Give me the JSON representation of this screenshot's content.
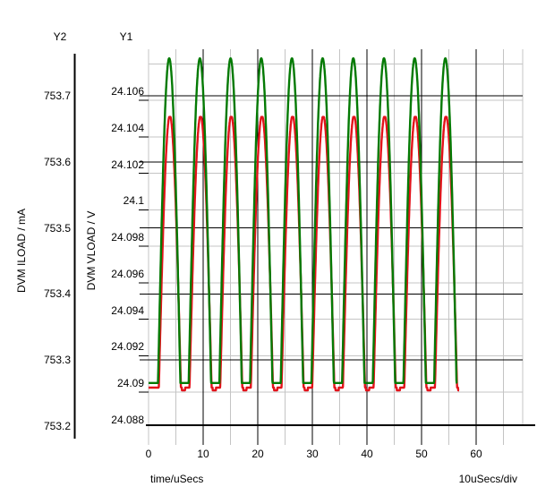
{
  "window": {
    "title": "waveform-plot"
  },
  "colors": {
    "background": "#ffffff",
    "text": "#000000",
    "grid_major": "#000000",
    "grid_minor": "#c4c4c4",
    "axis": "#000000",
    "vload_green": "#047a04",
    "iload_red": "#e3121a"
  },
  "y2_axis": {
    "title": "Y2",
    "unit_label": "DVM ILOAD / mA",
    "tick_labels": [
      "753.7",
      "753.6",
      "753.5",
      "753.4",
      "753.3",
      "753.2"
    ],
    "tick_values": [
      753.7,
      753.6,
      753.5,
      753.4,
      753.3,
      753.2
    ],
    "range": [
      753.201,
      753.77
    ]
  },
  "y1_axis": {
    "title": "Y1",
    "unit_label": "DVM VLOAD / V",
    "tick_labels": [
      "24.106",
      "24.104",
      "24.102",
      "24.1",
      "24.098",
      "24.096",
      "24.094",
      "24.092",
      "24.09",
      "24.088"
    ],
    "tick_values": [
      24.106,
      24.104,
      24.102,
      24.1,
      24.098,
      24.096,
      24.094,
      24.092,
      24.09,
      24.088
    ],
    "grid_values": [
      24.108,
      24.106,
      24.104,
      24.102,
      24.1,
      24.098,
      24.096,
      24.094,
      24.092,
      24.09,
      24.088
    ],
    "range": [
      24.0882,
      24.1088
    ]
  },
  "x_axis": {
    "caption": "time/uSecs",
    "div_label": "10uSecs/div",
    "tick_labels": [
      "0",
      "10",
      "20",
      "30",
      "40",
      "50",
      "60"
    ],
    "label_positions": [
      0,
      10,
      20,
      30,
      40,
      50,
      60
    ],
    "major_ticks": [
      10,
      20,
      30,
      40,
      50,
      60
    ],
    "minor_ticks": [
      0,
      5,
      15,
      25,
      35,
      45,
      55,
      65
    ],
    "range_us": [
      0,
      68.5
    ]
  },
  "chart_data": {
    "type": "line",
    "title": "",
    "xlabel": "time/uSecs",
    "x_range_us": [
      0,
      68.5
    ],
    "x_div": "10uSecs/div",
    "grid": true,
    "series": [
      {
        "name": "DVM ILOAD",
        "axis": "y2",
        "unit": "mA",
        "color": "#e3121a",
        "waveform": "half-sine pulse train",
        "period_us": 5.62,
        "peak_times_us": [
          3.78,
          9.4,
          15.02,
          20.64,
          26.26,
          31.88,
          37.5,
          43.12,
          48.74,
          54.36
        ],
        "pulse_width_us": 4.05,
        "lag_us": 0.12,
        "base_v": 753.258,
        "peak_v": 753.67,
        "t_end_us": 56.9,
        "bottom_notch": {
          "depth": 0.0041,
          "start_offset_us": 2.2,
          "end_offset_us": 2.8
        },
        "peak_dip": {
          "depth": 0.0027,
          "halfwidth_us": 0.14
        }
      },
      {
        "name": "DVM VLOAD",
        "axis": "y1",
        "unit": "V",
        "color": "#047a04",
        "waveform": "half-sine pulse train",
        "period_us": 5.62,
        "peak_times_us": [
          3.78,
          9.4,
          15.02,
          20.64,
          26.26,
          31.88,
          37.5,
          43.12,
          48.74,
          54.36
        ],
        "pulse_width_us": 4.1,
        "lag_us": 0,
        "base_v": 24.0905,
        "peak_v": 24.1083,
        "t_end_us": 56.5
      }
    ]
  }
}
